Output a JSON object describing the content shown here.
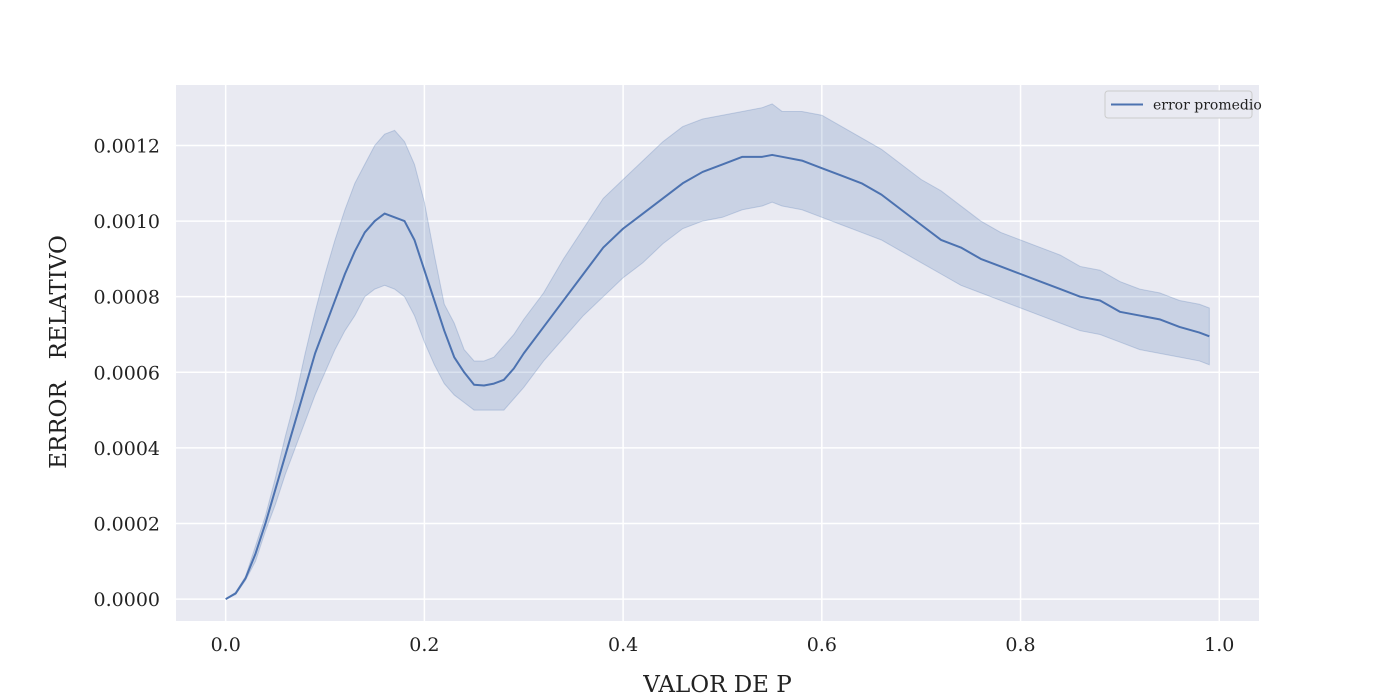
{
  "chart_data": {
    "type": "line",
    "xlabel": "VALOR DE P",
    "ylabel": "ERROR   RELATIVO",
    "xlim": [
      -0.05,
      1.04
    ],
    "ylim": [
      -5.8e-05,
      0.00136
    ],
    "xticks": [
      0.0,
      0.2,
      0.4,
      0.6,
      0.8,
      1.0
    ],
    "xtick_labels": [
      "0.0",
      "0.2",
      "0.4",
      "0.6",
      "0.8",
      "1.0"
    ],
    "yticks": [
      0.0,
      0.0002,
      0.0004,
      0.0006,
      0.0008,
      0.001,
      0.0012
    ],
    "ytick_labels": [
      "0.0000",
      "0.0002",
      "0.0004",
      "0.0006",
      "0.0008",
      "0.0010",
      "0.0012"
    ],
    "grid": true,
    "legend_position": "top-right",
    "colors": {
      "plot_background": "#e9eaf2",
      "grid": "#ffffff",
      "line": "#4c72b0",
      "band_fill": "#4c72b0"
    },
    "series": [
      {
        "name": "error promedio",
        "x": [
          0.0,
          0.01,
          0.02,
          0.03,
          0.04,
          0.05,
          0.06,
          0.07,
          0.08,
          0.09,
          0.1,
          0.11,
          0.12,
          0.13,
          0.14,
          0.15,
          0.16,
          0.17,
          0.18,
          0.19,
          0.2,
          0.21,
          0.22,
          0.23,
          0.24,
          0.25,
          0.26,
          0.27,
          0.28,
          0.29,
          0.3,
          0.32,
          0.34,
          0.36,
          0.38,
          0.4,
          0.42,
          0.44,
          0.46,
          0.48,
          0.5,
          0.52,
          0.54,
          0.55,
          0.56,
          0.58,
          0.6,
          0.62,
          0.64,
          0.66,
          0.68,
          0.7,
          0.72,
          0.74,
          0.76,
          0.78,
          0.8,
          0.82,
          0.84,
          0.86,
          0.88,
          0.9,
          0.92,
          0.94,
          0.96,
          0.98,
          0.99
        ],
        "values": [
          0.0,
          1.5e-05,
          5.5e-05,
          0.00012,
          0.0002,
          0.00029,
          0.00038,
          0.00047,
          0.00056,
          0.00065,
          0.00072,
          0.00079,
          0.00086,
          0.00092,
          0.00097,
          0.001,
          0.00102,
          0.00101,
          0.001,
          0.00095,
          0.00087,
          0.00079,
          0.00071,
          0.00064,
          0.0006,
          0.000567,
          0.000565,
          0.00057,
          0.00058,
          0.00061,
          0.00065,
          0.00072,
          0.00079,
          0.00086,
          0.00093,
          0.00098,
          0.00102,
          0.00106,
          0.0011,
          0.00113,
          0.00115,
          0.00117,
          0.00117,
          0.001175,
          0.00117,
          0.00116,
          0.00114,
          0.00112,
          0.0011,
          0.00107,
          0.00103,
          0.00099,
          0.00095,
          0.00093,
          0.0009,
          0.00088,
          0.00086,
          0.00084,
          0.00082,
          0.0008,
          0.00079,
          0.00076,
          0.00075,
          0.00074,
          0.00072,
          0.000705,
          0.000695
        ],
        "lower": [
          0.0,
          1.2e-05,
          5e-05,
          0.0001,
          0.00018,
          0.00025,
          0.00033,
          0.0004,
          0.00047,
          0.00054,
          0.0006,
          0.00066,
          0.00071,
          0.00075,
          0.0008,
          0.00082,
          0.00083,
          0.00082,
          0.0008,
          0.00075,
          0.00068,
          0.00062,
          0.00057,
          0.00054,
          0.00052,
          0.0005,
          0.0005,
          0.0005,
          0.0005,
          0.00053,
          0.00056,
          0.00063,
          0.00069,
          0.00075,
          0.0008,
          0.00085,
          0.00089,
          0.00094,
          0.00098,
          0.001,
          0.00101,
          0.00103,
          0.00104,
          0.00105,
          0.00104,
          0.00103,
          0.00101,
          0.00099,
          0.00097,
          0.00095,
          0.00092,
          0.00089,
          0.00086,
          0.00083,
          0.00081,
          0.00079,
          0.00077,
          0.00075,
          0.00073,
          0.00071,
          0.0007,
          0.00068,
          0.00066,
          0.00065,
          0.00064,
          0.00063,
          0.00062
        ],
        "upper": [
          0.0,
          1.8e-05,
          6e-05,
          0.00014,
          0.00022,
          0.00032,
          0.00043,
          0.00053,
          0.00065,
          0.00076,
          0.00086,
          0.00095,
          0.00103,
          0.0011,
          0.00115,
          0.0012,
          0.00123,
          0.00124,
          0.00121,
          0.00115,
          0.00105,
          0.00091,
          0.00078,
          0.00073,
          0.00066,
          0.00063,
          0.00063,
          0.00064,
          0.00067,
          0.0007,
          0.00074,
          0.00081,
          0.0009,
          0.00098,
          0.00106,
          0.00111,
          0.00116,
          0.00121,
          0.00125,
          0.00127,
          0.00128,
          0.00129,
          0.0013,
          0.00131,
          0.00129,
          0.00129,
          0.00128,
          0.00125,
          0.00122,
          0.00119,
          0.00115,
          0.00111,
          0.00108,
          0.00104,
          0.001,
          0.00097,
          0.00095,
          0.00093,
          0.00091,
          0.00088,
          0.00087,
          0.00084,
          0.00082,
          0.00081,
          0.00079,
          0.00078,
          0.00077
        ]
      }
    ]
  }
}
